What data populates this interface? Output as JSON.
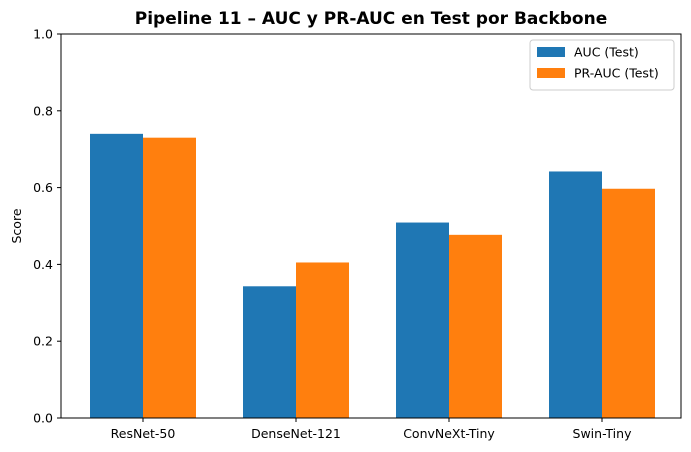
{
  "chart_data": {
    "type": "bar",
    "title": "Pipeline 11 – AUC y PR-AUC en Test por Backbone",
    "xlabel": "",
    "ylabel": "Score",
    "ylim": [
      0,
      1.0
    ],
    "yticks": [
      "0.0",
      "0.2",
      "0.4",
      "0.6",
      "0.8",
      "1.0"
    ],
    "categories": [
      "ResNet-50",
      "DenseNet-121",
      "ConvNeXt-Tiny",
      "Swin-Tiny"
    ],
    "series": [
      {
        "name": "AUC (Test)",
        "color": "#1f77b4",
        "values": [
          0.74,
          0.343,
          0.509,
          0.642
        ]
      },
      {
        "name": "PR-AUC (Test)",
        "color": "#ff7f0e",
        "values": [
          0.73,
          0.405,
          0.477,
          0.597
        ]
      }
    ],
    "legend_position": "top-right",
    "grid": false
  }
}
